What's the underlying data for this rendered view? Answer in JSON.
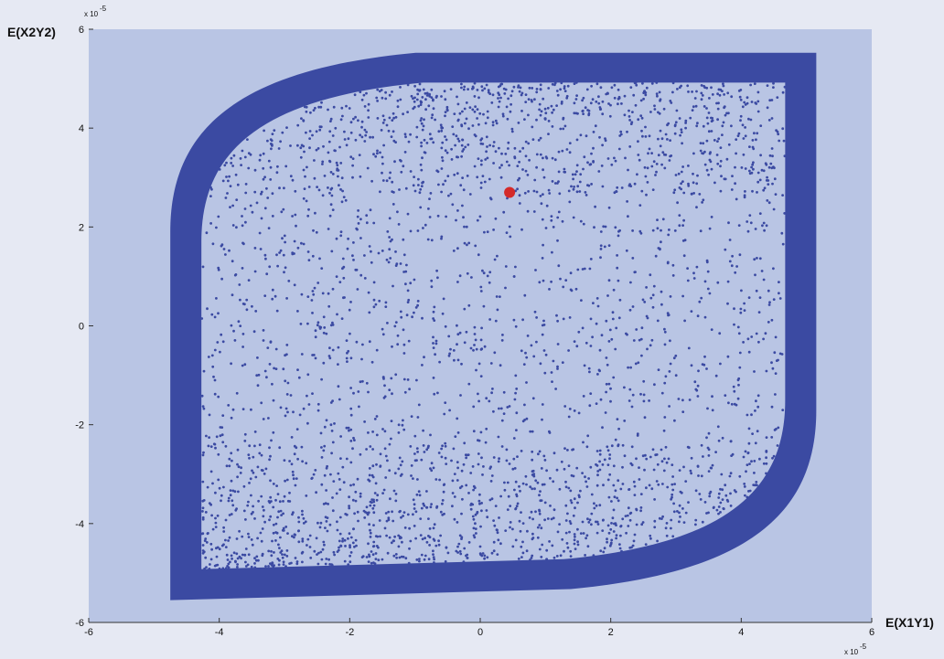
{
  "chart_data": {
    "type": "scatter",
    "title": "",
    "xlabel": "E(X1Y1)",
    "ylabel": "E(X2Y2)",
    "x_exponent_label": "x 10",
    "x_exponent_power": "-5",
    "y_exponent_label": "x 10",
    "y_exponent_power": "-5",
    "xlim": [
      -6,
      6
    ],
    "ylim": [
      -6,
      6
    ],
    "xticks": [
      -6,
      -4,
      -2,
      0,
      2,
      4,
      6
    ],
    "yticks": [
      -6,
      -4,
      -2,
      0,
      2,
      4,
      6
    ],
    "xtick_labels": [
      "-6",
      "-4",
      "-2",
      "0",
      "2",
      "4",
      "6"
    ],
    "ytick_labels": [
      "-6",
      "-4",
      "-2",
      "0",
      "2",
      "4",
      "6"
    ],
    "unit_scale": "1e-5",
    "grid": false,
    "series": [
      {
        "marker": "dot",
        "color": "#3b4aa2",
        "description_of_cloud": "dense random points filling a rounded parallelogram region",
        "extent_x": [
          -4.75,
          5.15
        ],
        "extent_y": [
          -5.55,
          5.75
        ],
        "corner_points": [
          [
            -4.75,
            -5.55
          ],
          [
            5.15,
            5.75
          ],
          [
            -4.2,
            4.3
          ],
          [
            4.6,
            -4.4
          ]
        ]
      },
      {
        "marker": "large-dot",
        "color": "#d42a2a",
        "points": [
          [
            0.45,
            2.7
          ]
        ]
      }
    ],
    "colors": {
      "background": "#e6e9f3",
      "plot_area": "#b9c5e4",
      "dots": "#3b4aa2",
      "highlight": "#d42a2a"
    }
  }
}
